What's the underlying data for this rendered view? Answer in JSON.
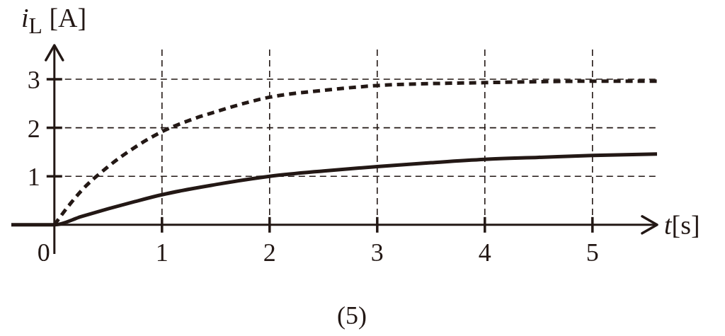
{
  "chart_data": {
    "type": "line",
    "xlabel": "t[s]",
    "ylabel": "i$_{L}$ [A]",
    "annotations": [
      "(5)"
    ],
    "xlim": [
      -0.4,
      5.6
    ],
    "ylim": [
      -0.6,
      3.7
    ],
    "xticks": [
      0,
      1,
      2,
      3,
      4,
      5
    ],
    "yticks": [
      1,
      2,
      3
    ],
    "grid": true,
    "series": [
      {
        "color": "#231815",
        "line_style": "solid",
        "x": [
          -0.4,
          0,
          0.25,
          0.5,
          0.75,
          1,
          1.5,
          2,
          2.5,
          3,
          3.5,
          4,
          4.5,
          5,
          5.6
        ],
        "values": [
          0,
          0,
          0.17,
          0.33,
          0.48,
          0.62,
          0.83,
          1.0,
          1.11,
          1.2,
          1.28,
          1.35,
          1.39,
          1.43,
          1.46
        ]
      },
      {
        "color": "#231815",
        "line_style": "dashed",
        "x": [
          0,
          0.15,
          0.25,
          0.5,
          0.75,
          1,
          1.25,
          1.5,
          2,
          2.5,
          3,
          3.5,
          4,
          4.5,
          5,
          5.6
        ],
        "values": [
          0,
          0.44,
          0.7,
          1.2,
          1.6,
          1.92,
          2.15,
          2.33,
          2.63,
          2.77,
          2.87,
          2.91,
          2.93,
          2.95,
          2.96,
          2.96
        ]
      }
    ]
  }
}
